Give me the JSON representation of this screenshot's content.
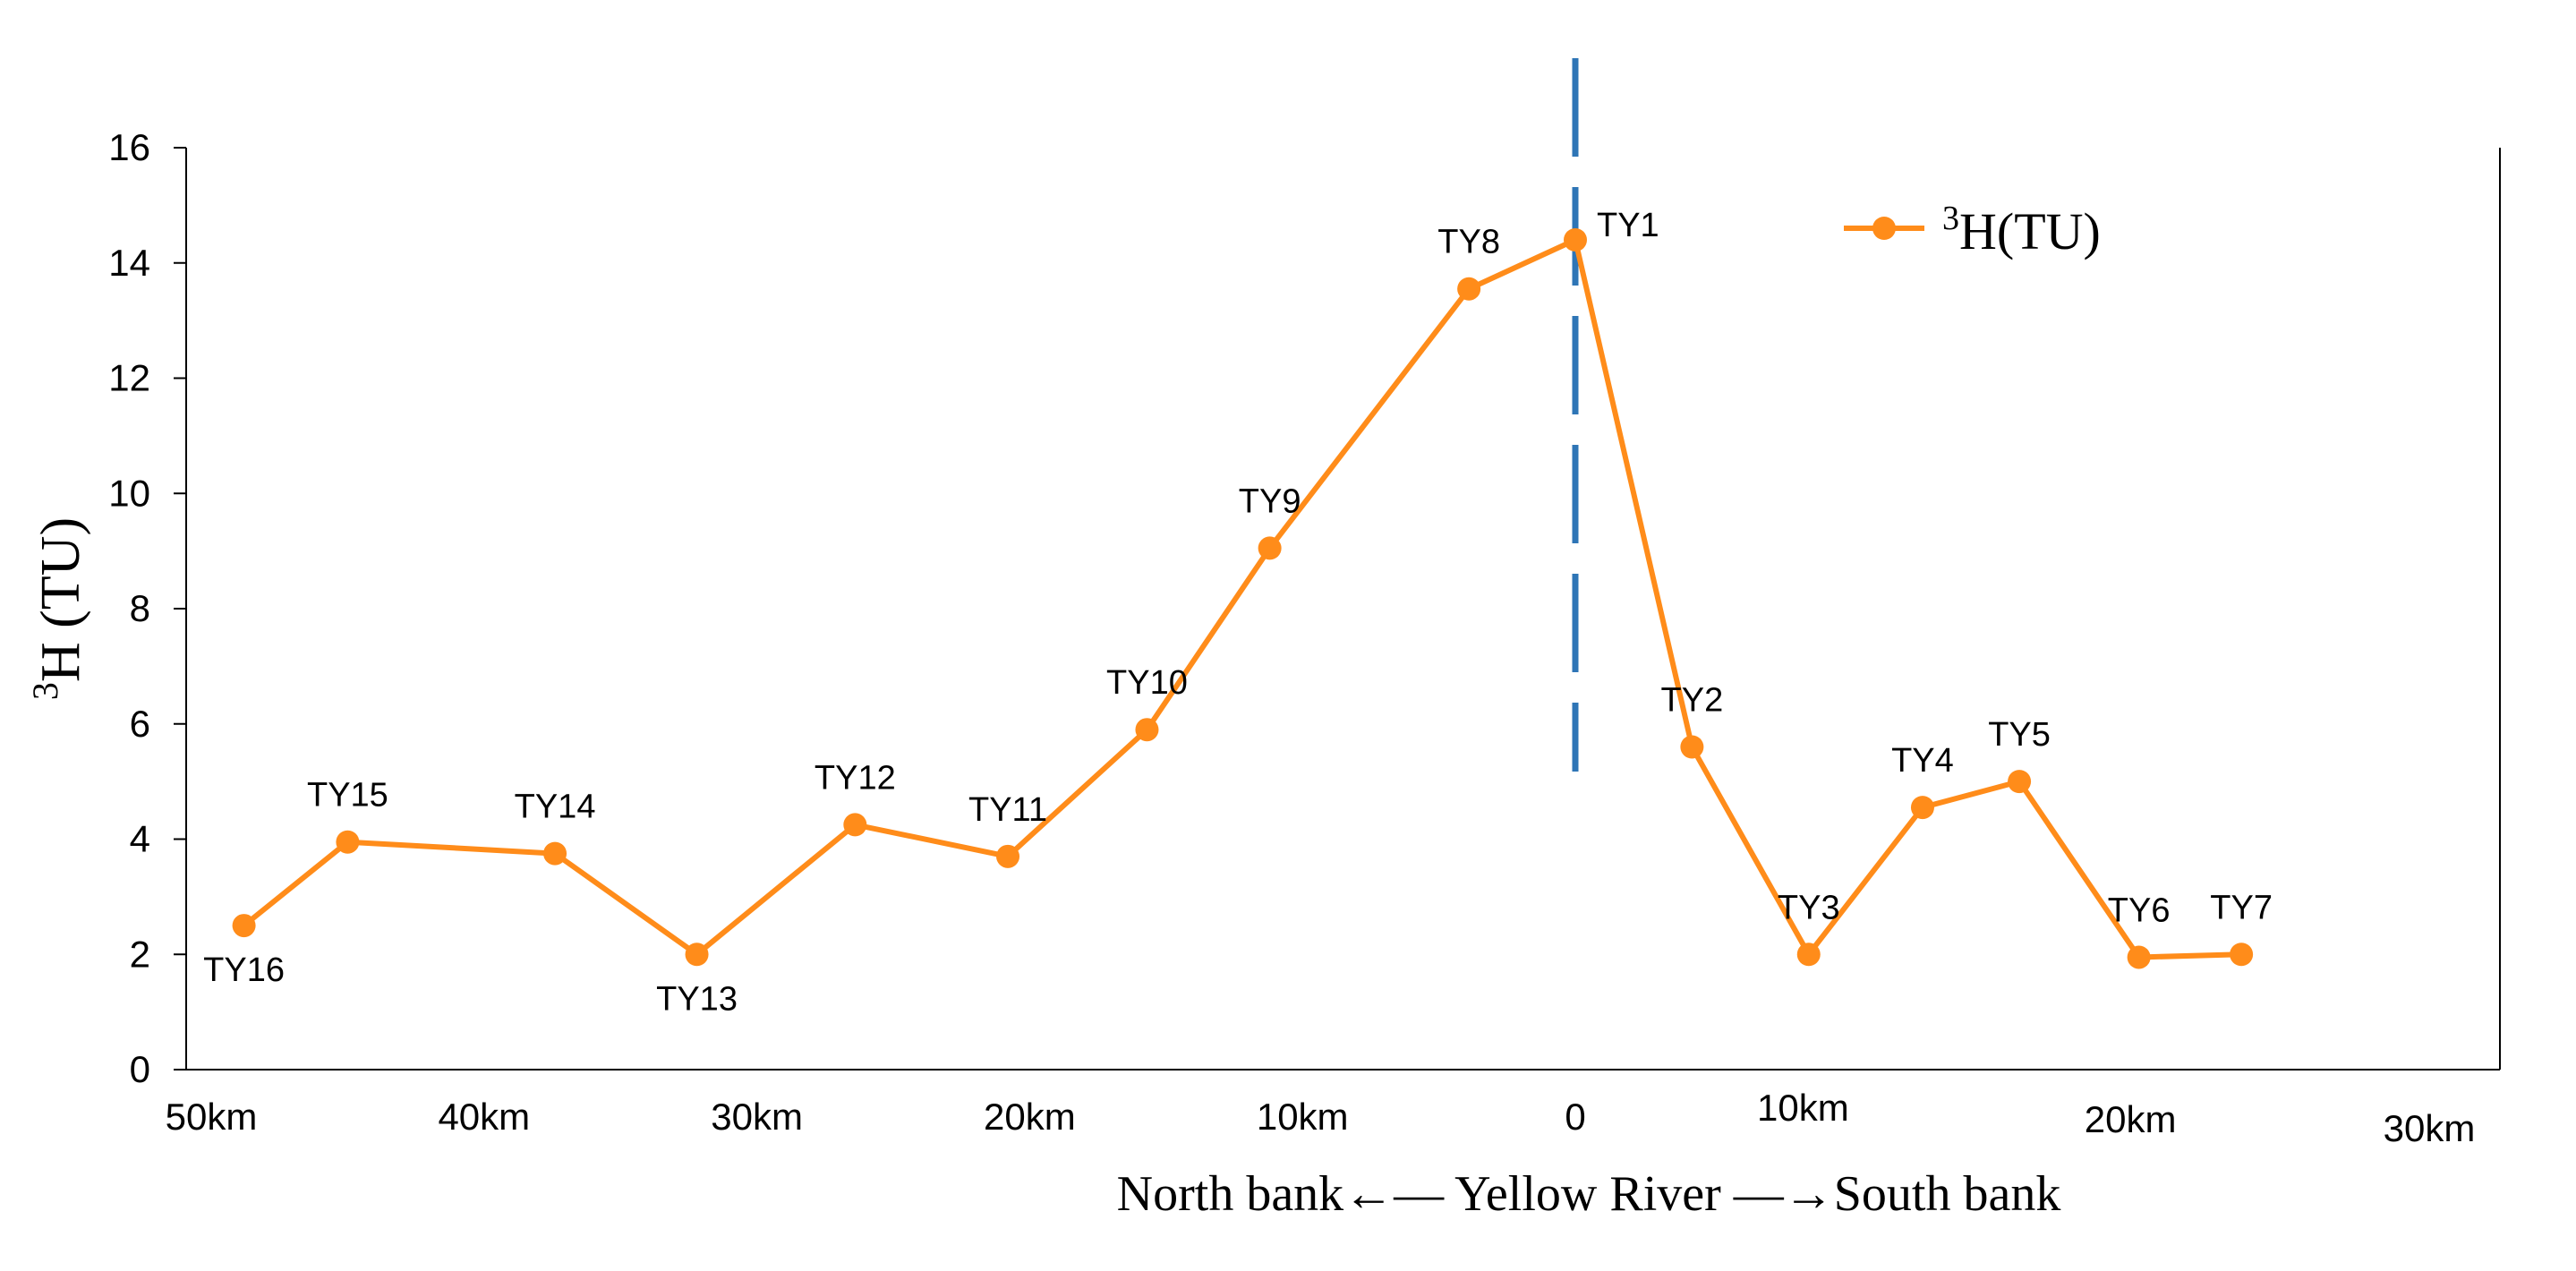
{
  "chart_data": {
    "type": "line",
    "ylabel": {
      "sup": "3",
      "main": "H (TU)"
    },
    "xlabel": "North bank←— Yellow River —→South bank",
    "ylim": [
      0,
      16
    ],
    "yticks": [
      "0",
      "2",
      "4",
      "6",
      "8",
      "10",
      "12",
      "14",
      "16"
    ],
    "xlim": [
      -50,
      30
    ],
    "xticks": [
      {
        "value": -50,
        "label": "50km"
      },
      {
        "value": -40,
        "label": "40km"
      },
      {
        "value": -30,
        "label": "30km"
      },
      {
        "value": -20,
        "label": "20km"
      },
      {
        "value": -10,
        "label": "10km"
      },
      {
        "value": 0,
        "label": "0"
      },
      {
        "value": 8,
        "label": "10km"
      },
      {
        "value": 19.5,
        "label": "20km"
      },
      {
        "value": 30,
        "label": "30km"
      }
    ],
    "river_line": {
      "x": 0,
      "style": "dashed",
      "color": "#2E75B6"
    },
    "series": [
      {
        "name": "H(TU)",
        "name_sup": "3",
        "color": "#FF8C1A",
        "points": [
          {
            "label": "TY16",
            "x": -48.8,
            "y": 2.5,
            "label_pos": "below"
          },
          {
            "label": "TY15",
            "x": -45.0,
            "y": 3.95,
            "label_pos": "above"
          },
          {
            "label": "TY14",
            "x": -37.4,
            "y": 3.75,
            "label_pos": "above"
          },
          {
            "label": "TY13",
            "x": -32.2,
            "y": 2.0,
            "label_pos": "below"
          },
          {
            "label": "TY12",
            "x": -26.4,
            "y": 4.25,
            "label_pos": "above"
          },
          {
            "label": "TY11",
            "x": -20.8,
            "y": 3.7,
            "label_pos": "above"
          },
          {
            "label": "TY10",
            "x": -15.7,
            "y": 5.9,
            "label_pos": "above"
          },
          {
            "label": "TY9",
            "x": -11.2,
            "y": 9.05,
            "label_pos": "above"
          },
          {
            "label": "TY8",
            "x": -3.9,
            "y": 13.55,
            "label_pos": "above"
          },
          {
            "label": "TY1",
            "x": 0.0,
            "y": 14.4,
            "label_pos": "right"
          },
          {
            "label": "TY2",
            "x": 4.1,
            "y": 5.6,
            "label_pos": "above"
          },
          {
            "label": "TY3",
            "x": 8.2,
            "y": 2.0,
            "label_pos": "above"
          },
          {
            "label": "TY4",
            "x": 12.2,
            "y": 4.55,
            "label_pos": "above"
          },
          {
            "label": "TY5",
            "x": 15.6,
            "y": 5.0,
            "label_pos": "above"
          },
          {
            "label": "TY6",
            "x": 19.8,
            "y": 1.95,
            "label_pos": "above"
          },
          {
            "label": "TY7",
            "x": 23.4,
            "y": 2.0,
            "label_pos": "above"
          }
        ]
      }
    ],
    "legend": {
      "position": "top-right"
    }
  }
}
